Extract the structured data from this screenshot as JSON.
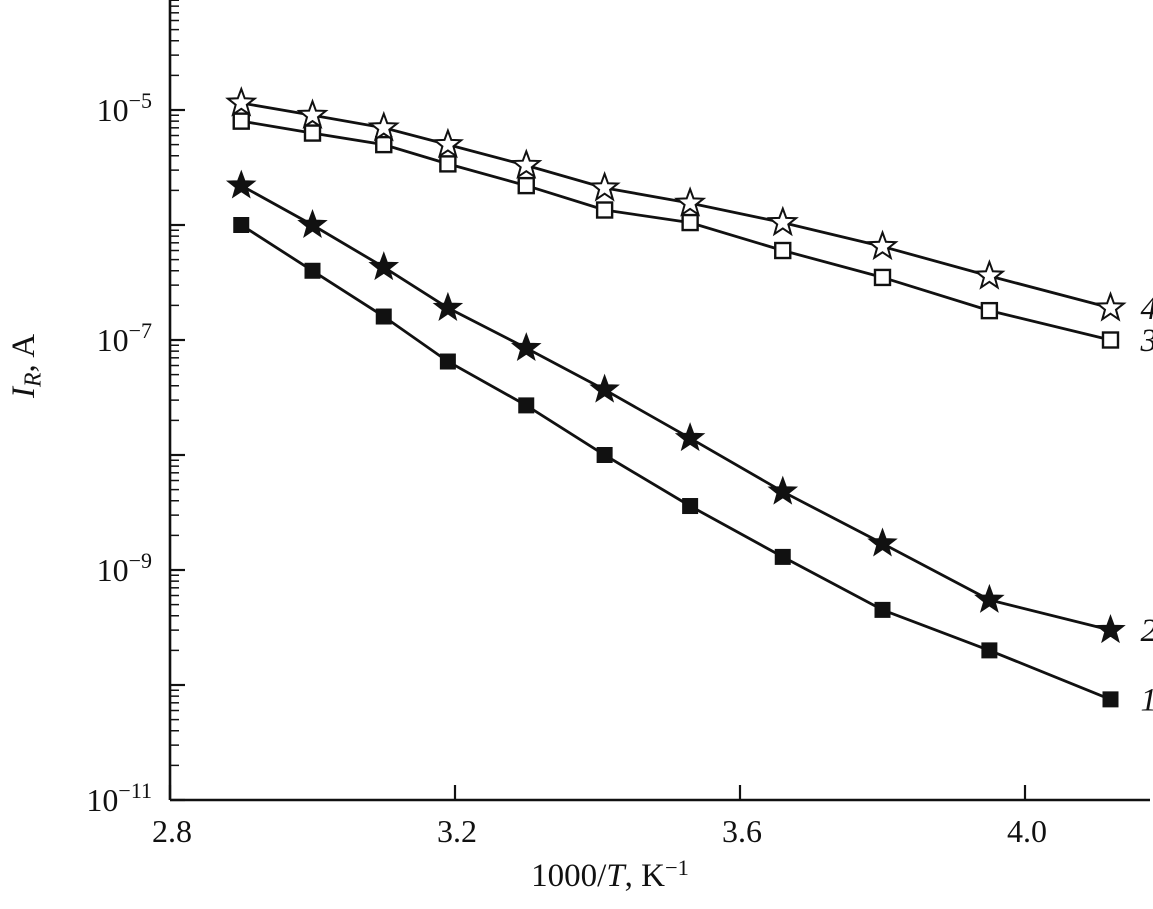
{
  "chart_data": {
    "type": "line",
    "title": "",
    "background": "#ffffff",
    "line_color": "#111111",
    "xlabel": "1000/T, K−1",
    "ylabel": "IR, A",
    "xlabel_parts": {
      "pre": "1000/",
      "var": "T",
      "post": ", K",
      "sup": "−1"
    },
    "ylabel_parts": {
      "var": "I",
      "sub": "R",
      "post": ", A"
    },
    "x_axis": {
      "min": 2.8,
      "max": 4.18,
      "major_ticks": [
        2.8,
        3.2,
        3.6,
        4.0
      ],
      "tick_labels": [
        "2.8",
        "3.2",
        "3.6",
        "4.0"
      ]
    },
    "y_axis": {
      "scale": "log",
      "min": 1e-11,
      "max": 0.0001,
      "labeled_exponents": [
        -5,
        -7,
        -9,
        -11
      ],
      "tick_labels": [
        "10⁻⁵",
        "10⁻⁷",
        "10⁻⁹",
        "10⁻¹¹"
      ],
      "grid": false
    },
    "legend_position": "right-end-of-curves",
    "x": [
      2.9,
      3.0,
      3.1,
      3.19,
      3.3,
      3.41,
      3.53,
      3.66,
      3.8,
      3.95,
      4.12
    ],
    "series": [
      {
        "name": "1",
        "marker": "filled-square",
        "values": [
          1e-06,
          4e-07,
          1.6e-07,
          6.5e-08,
          2.7e-08,
          1e-08,
          3.6e-09,
          1.3e-09,
          4.5e-10,
          2e-10,
          7.5e-11
        ]
      },
      {
        "name": "2",
        "marker": "filled-star",
        "values": [
          2.2e-06,
          1e-06,
          4.3e-07,
          1.9e-07,
          8.5e-08,
          3.7e-08,
          1.4e-08,
          4.8e-09,
          1.7e-09,
          5.5e-10,
          3e-10
        ]
      },
      {
        "name": "3",
        "marker": "open-square",
        "values": [
          8e-06,
          6.3e-06,
          5e-06,
          3.4e-06,
          2.2e-06,
          1.35e-06,
          1.05e-06,
          6e-07,
          3.5e-07,
          1.8e-07,
          1e-07
        ]
      },
      {
        "name": "4",
        "marker": "open-star",
        "values": [
          1.15e-05,
          9e-06,
          7e-06,
          5e-06,
          3.3e-06,
          2.1e-06,
          1.55e-06,
          1.05e-06,
          6.5e-07,
          3.6e-07,
          1.9e-07
        ]
      }
    ]
  }
}
